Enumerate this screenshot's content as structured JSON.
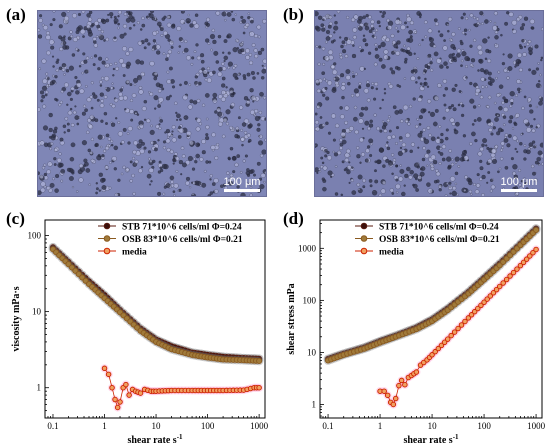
{
  "panels": {
    "a": {
      "label": "(a)",
      "scale_bar": "100 μm"
    },
    "b": {
      "label": "(b)",
      "scale_bar": "100 μm"
    },
    "c": {
      "label": "(c)"
    },
    "d": {
      "label": "(d)"
    }
  },
  "colors": {
    "micro_bg": "#7f86b6",
    "stb": "#5a1a0e",
    "osb": "#8a5a20",
    "media": "#cc2200",
    "stb_fill": "#3a0f0a",
    "osb_fill": "#a07a3a",
    "media_fill": "#f0a060",
    "error_halo": "#ff99cc"
  },
  "chart_data": [
    {
      "panel": "c",
      "type": "scatter",
      "xscale": "log",
      "yscale": "log",
      "xlabel": "shear rate s",
      "xlabel_sup": "-1",
      "ylabel": "viscosity mPa·s",
      "xlim": [
        0.07,
        1300
      ],
      "ylim": [
        0.4,
        160
      ],
      "x_ticks": [
        0.1,
        1,
        10,
        100,
        1000
      ],
      "x_tick_labels": [
        "0.1",
        "1",
        "10",
        "100",
        "1000"
      ],
      "y_ticks": [
        1,
        10,
        100
      ],
      "y_tick_labels": [
        "1",
        "10",
        "100"
      ],
      "legend_position": "top-right",
      "series": [
        {
          "name": "STB 71*10^6 cells/ml Φ=0.24",
          "x": [
            0.1,
            0.2,
            0.5,
            1,
            2,
            5,
            10,
            20,
            50,
            100,
            200,
            500,
            1000
          ],
          "y": [
            70,
            45,
            25,
            16.5,
            10.5,
            6.0,
            4.3,
            3.5,
            2.9,
            2.7,
            2.55,
            2.45,
            2.4
          ]
        },
        {
          "name": "OSB 83*10^6 cells/ml Φ=0.21",
          "x": [
            0.1,
            0.2,
            0.5,
            1,
            2,
            5,
            10,
            20,
            50,
            100,
            200,
            500,
            1000
          ],
          "y": [
            66,
            42,
            23,
            15,
            9.8,
            5.6,
            4.0,
            3.2,
            2.7,
            2.5,
            2.35,
            2.3,
            2.25
          ]
        },
        {
          "name": "media",
          "x": [
            1,
            1.2,
            1.4,
            1.6,
            1.8,
            2,
            2.3,
            2.6,
            3,
            3.5,
            4,
            5,
            6,
            8,
            10,
            20,
            50,
            100,
            200,
            500,
            800,
            1000
          ],
          "y": [
            1.8,
            1.5,
            1.0,
            0.7,
            0.55,
            0.65,
            1.0,
            1.1,
            0.8,
            0.95,
            0.9,
            0.85,
            0.95,
            0.9,
            0.9,
            0.92,
            0.92,
            0.92,
            0.92,
            0.93,
            1.0,
            1.0
          ]
        }
      ]
    },
    {
      "panel": "d",
      "type": "scatter",
      "xscale": "log",
      "yscale": "log",
      "xlabel": "shear rate s",
      "xlabel_sup": "-1",
      "ylabel": "shear stress mPa",
      "xlim": [
        0.07,
        1300
      ],
      "ylim": [
        0.55,
        3500
      ],
      "x_ticks": [
        0.1,
        1,
        10,
        100,
        1000
      ],
      "x_tick_labels": [
        "0.1",
        "1",
        "10",
        "100",
        "1000"
      ],
      "y_ticks": [
        1,
        10,
        100,
        1000
      ],
      "y_tick_labels": [
        "1",
        "10",
        "100",
        "1000"
      ],
      "legend_position": "top-left",
      "series": [
        {
          "name": "STB 71*10^6 cells/ml Φ=0.24",
          "x": [
            0.1,
            0.2,
            0.5,
            1,
            2,
            5,
            10,
            20,
            50,
            100,
            200,
            500,
            1000
          ],
          "y": [
            7.5,
            9.5,
            12.5,
            16.5,
            21,
            30,
            43,
            70,
            145,
            270,
            510,
            1220,
            2400
          ]
        },
        {
          "name": "OSB 83*10^6 cells/ml Φ=0.21",
          "x": [
            0.1,
            0.2,
            0.5,
            1,
            2,
            5,
            10,
            20,
            50,
            100,
            200,
            500,
            1000
          ],
          "y": [
            7.0,
            9.0,
            11.8,
            15.5,
            20,
            28,
            40,
            65,
            135,
            250,
            470,
            1150,
            2250
          ]
        },
        {
          "name": "media",
          "x": [
            1,
            1.2,
            1.4,
            1.6,
            1.8,
            2,
            2.3,
            2.6,
            3,
            3.5,
            4,
            5,
            6,
            8,
            10,
            20,
            50,
            100,
            200,
            500,
            1000
          ],
          "y": [
            1.8,
            1.8,
            1.5,
            1.1,
            1.0,
            1.3,
            2.3,
            2.9,
            2.4,
            3.3,
            3.6,
            4.2,
            5.7,
            7.2,
            9,
            18,
            46,
            92,
            185,
            465,
            950
          ]
        }
      ]
    }
  ]
}
